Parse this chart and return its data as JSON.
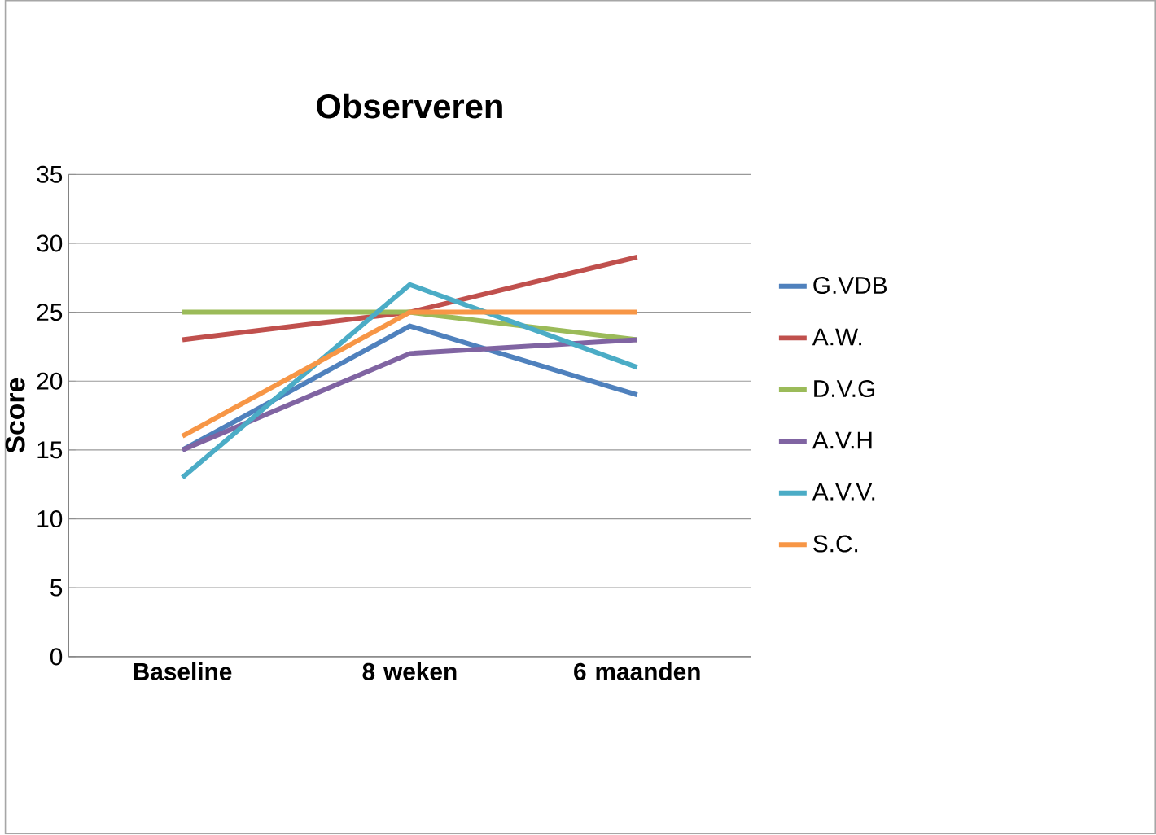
{
  "chart_data": {
    "type": "line",
    "title": "Observeren",
    "ylabel": "Score",
    "categories": [
      "Baseline",
      "8 weken",
      "6 maanden"
    ],
    "series": [
      {
        "name": "G.VDB",
        "color": "#4f81bd",
        "values": [
          15,
          24,
          19
        ]
      },
      {
        "name": "A.W.",
        "color": "#c0504d",
        "values": [
          23,
          25,
          29
        ]
      },
      {
        "name": "D.V.G",
        "color": "#9bbb59",
        "values": [
          25,
          25,
          23
        ]
      },
      {
        "name": "A.V.H",
        "color": "#8064a2",
        "values": [
          15,
          22,
          23
        ]
      },
      {
        "name": "A.V.V.",
        "color": "#4bacc6",
        "values": [
          13,
          27,
          21
        ]
      },
      {
        "name": "S.C.",
        "color": "#f79646",
        "values": [
          16,
          25,
          25
        ]
      }
    ],
    "ylim": [
      0,
      35
    ],
    "yticks": [
      0,
      5,
      10,
      15,
      20,
      25,
      30,
      35
    ],
    "grid": "y",
    "legend": "right",
    "marker": "none",
    "line_style": "solid"
  }
}
